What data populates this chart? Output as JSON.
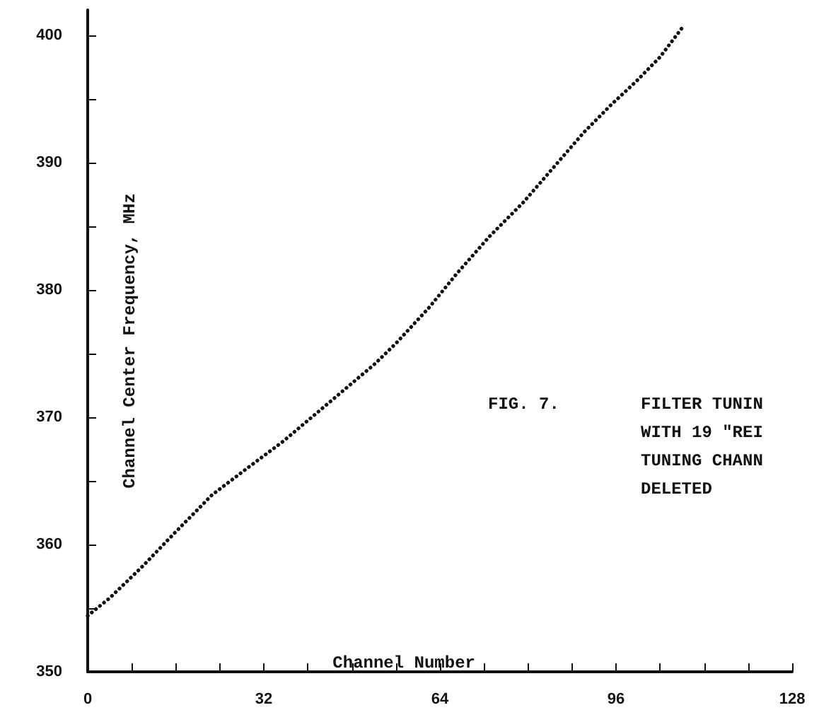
{
  "chart_data": {
    "type": "line",
    "xlabel": "Channel Number",
    "ylabel": "Channel Center Frequency, MHz",
    "annotations": [
      "FIG. 7.",
      "FILTER TUNIN\nWITH 19 \"REI\nTUNING CHANN\nDELETED"
    ],
    "x": [
      0,
      4,
      10,
      16,
      22.6,
      29,
      35.5,
      44,
      52.2,
      56,
      62,
      67.1,
      73,
      79.2,
      85,
      90.2,
      95,
      99.7,
      104,
      108.2
    ],
    "series": [
      {
        "color": "#111111",
        "values": [
          354.4,
          355.8,
          358.3,
          361,
          363.9,
          366,
          368.1,
          371.2,
          374.2,
          375.8,
          378.6,
          381.3,
          384.2,
          386.9,
          389.8,
          392.4,
          394.5,
          396.4,
          398.3,
          400.7
        ]
      }
    ],
    "xlim": [
      0,
      128
    ],
    "ylim": [
      350,
      402
    ],
    "xticks": [
      0,
      {
        "value": 8,
        "label": null
      },
      {
        "value": 16,
        "label": null
      },
      {
        "value": 24,
        "label": null
      },
      32,
      {
        "value": 40,
        "label": null
      },
      {
        "value": 48,
        "label": null
      },
      {
        "value": 56,
        "label": null
      },
      64,
      {
        "value": 72,
        "label": null
      },
      {
        "value": 80,
        "label": null
      },
      {
        "value": 88,
        "label": null
      },
      96,
      {
        "value": 104,
        "label": null
      },
      {
        "value": 112,
        "label": null
      },
      {
        "value": 120,
        "label": null
      },
      128
    ],
    "yticks": [
      350,
      {
        "value": 355,
        "label": null
      },
      360,
      {
        "value": 365,
        "label": null
      },
      370,
      {
        "value": 375,
        "label": null
      },
      380,
      {
        "value": 385,
        "label": null
      },
      390,
      {
        "value": 395,
        "label": null
      },
      400
    ],
    "marker": "none",
    "line_style": "dotted"
  }
}
